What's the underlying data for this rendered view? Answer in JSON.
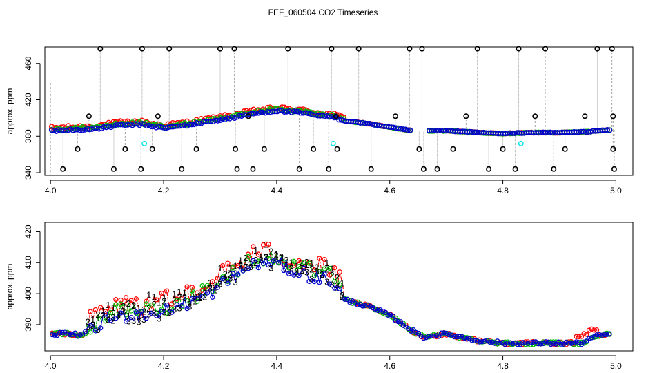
{
  "title": "FEF_060504  CO2 Timeseries",
  "colors": {
    "black": "#000000",
    "red": "#ff0000",
    "green": "#00bb00",
    "blue": "#0000cc",
    "cyan": "#00e5ee",
    "grey": "#a0a0a0"
  },
  "chart_data": [
    {
      "type": "scatter",
      "panel": "top",
      "title": "FEF_060504  CO2 Timeseries",
      "xlabel": "",
      "ylabel": "approx. ppm",
      "xlim": [
        3.99,
        5.03
      ],
      "ylim": [
        337,
        478
      ],
      "xticks": [
        4.0,
        4.2,
        4.4,
        4.6,
        4.8,
        5.0
      ],
      "xticklabels": [
        "4.0",
        "4.2",
        "4.4",
        "4.6",
        "4.8",
        "5.0"
      ],
      "yticks": [
        340,
        380,
        420,
        460
      ],
      "yticklabels": [
        "340",
        "380",
        "420",
        "460"
      ],
      "grid": false,
      "legend": "none",
      "baseline_knots": {
        "x": [
          4.0,
          4.04,
          4.08,
          4.12,
          4.16,
          4.2,
          4.24,
          4.28,
          4.32,
          4.36,
          4.4,
          4.44,
          4.48,
          4.5,
          4.52,
          4.56,
          4.6,
          4.64,
          4.66,
          4.7,
          4.76,
          4.8,
          4.85,
          4.9,
          4.95,
          4.99
        ],
        "y": [
          386,
          387,
          388,
          392,
          393,
          389,
          392,
          396,
          400,
          405,
          408,
          406,
          402,
          401,
          397,
          394,
          390,
          386,
          386,
          386,
          384,
          383,
          384,
          384,
          385,
          387
        ]
      },
      "high_spikes_x": [
        4.088,
        4.162,
        4.21,
        4.3,
        4.325,
        4.42,
        4.497,
        4.545,
        4.635,
        4.657,
        4.755,
        4.828,
        4.875,
        4.967,
        4.993
      ],
      "low_spikes_x": [
        4.022,
        4.112,
        4.16,
        4.232,
        4.33,
        4.358,
        4.44,
        4.492,
        4.567,
        4.66,
        4.684,
        4.775,
        4.822,
        4.89,
        4.997
      ],
      "mid_low_x": [
        4.048,
        4.132,
        4.18,
        4.258,
        4.327,
        4.378,
        4.465,
        4.507,
        4.652,
        4.712,
        4.8,
        4.91,
        4.995
      ],
      "mid_high_x": [
        4.068,
        4.19,
        4.35,
        4.505,
        4.61,
        4.735,
        4.857,
        4.945,
        4.995
      ],
      "spike_values": {
        "high": 476,
        "low": 344,
        "mid_low": 366,
        "mid_high": 402
      },
      "cyan_points": [
        {
          "x": 4.166,
          "y": 372
        },
        {
          "x": 4.5,
          "y": 372
        },
        {
          "x": 4.832,
          "y": 372
        }
      ],
      "series": [
        {
          "name": "",
          "color": "red",
          "offset_upto_4.5": 3
        },
        {
          "name": "",
          "color": "green",
          "offset_upto_4.5": 1.5
        },
        {
          "name": "",
          "color": "blue",
          "offset_upto_4.5": 0
        }
      ]
    },
    {
      "type": "line",
      "panel": "bottom",
      "xlabel": "",
      "ylabel": "approx. ppm",
      "xlim": [
        3.99,
        5.03
      ],
      "ylim": [
        381.5,
        423
      ],
      "xticks": [
        4.0,
        4.2,
        4.4,
        4.6,
        4.8,
        5.0
      ],
      "xticklabels": [
        "4.0",
        "4.2",
        "4.4",
        "4.6",
        "4.8",
        "5.0"
      ],
      "yticks": [
        390,
        400,
        410,
        420
      ],
      "yticklabels": [
        "390",
        "400",
        "410",
        "420"
      ],
      "grid": false,
      "legend": "none",
      "series": [
        {
          "name": "1",
          "color": "red",
          "label": "1"
        },
        {
          "name": "2",
          "color": "green",
          "label": "2"
        },
        {
          "name": "3",
          "color": "blue",
          "label": "3"
        }
      ]
    }
  ]
}
